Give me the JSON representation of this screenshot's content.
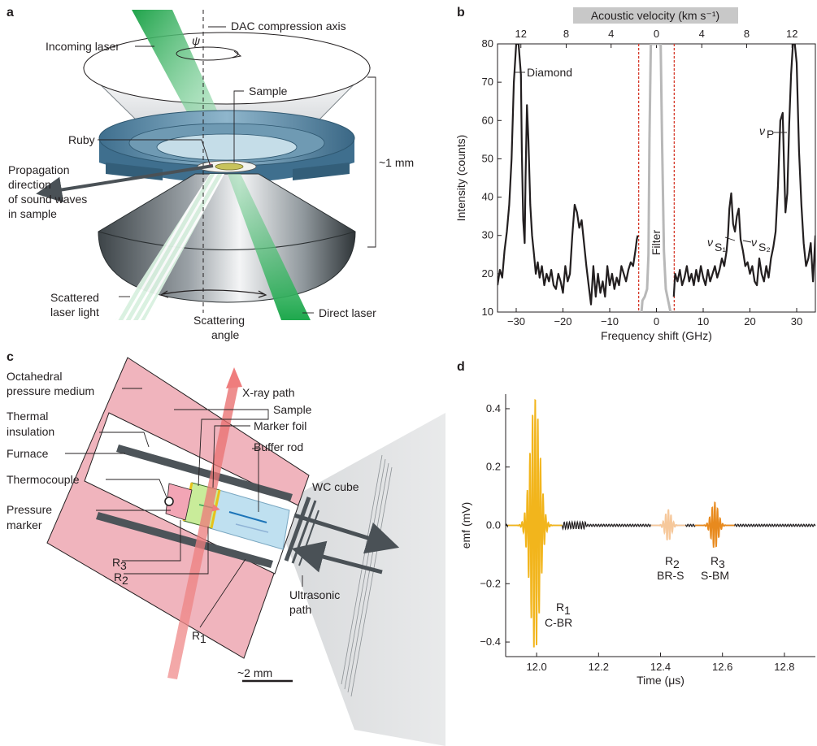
{
  "panels": {
    "a": {
      "letter": "a",
      "labels": {
        "axis": "DAC compression axis",
        "psi": "ψ",
        "incoming": "Incoming laser",
        "sample": "Sample",
        "ruby": "Ruby",
        "prop1": "Propagation",
        "prop2": "direction",
        "prop3": "of sound waves",
        "prop4": "in sample",
        "size": "~1 mm",
        "scattered1": "Scattered",
        "scattered2": "laser light",
        "scatangle1": "Scattering",
        "scatangle2": "angle",
        "direct": "Direct laser"
      }
    },
    "b": {
      "letter": "b",
      "top_axis_label": "Acoustic velocity (km s⁻¹)",
      "labels": {
        "diamond": "Diamond",
        "filter": "Filter",
        "vp": "ν",
        "vp_sub": "P",
        "vs1": "ν",
        "vs1_sub": "S₁",
        "vs2": "ν",
        "vs2_sub": "S₂"
      }
    },
    "c": {
      "letter": "c",
      "labels": {
        "octa1": "Octahedral",
        "octa2": "pressure medium",
        "xray": "X-ray path",
        "thermal1": "Thermal",
        "thermal2": "insulation",
        "sample": "Sample",
        "marker": "Marker foil",
        "buffer": "Buffer rod",
        "furnace": "Furnace",
        "thermocouple": "Thermocouple",
        "wc": "WC cube",
        "pressure1": "Pressure",
        "pressure2": "marker",
        "r3": "R",
        "r3sub": "3",
        "r2": "R",
        "r2sub": "2",
        "r1": "R",
        "r1sub": "1",
        "ultra1": "Ultrasonic",
        "ultra2": "path",
        "scale": "~2 mm"
      }
    },
    "d": {
      "letter": "d",
      "labels": {
        "r1": "R",
        "r1sub": "1",
        "r1name": "C-BR",
        "r2": "R",
        "r2sub": "2",
        "r2name": "BR-S",
        "r3": "R",
        "r3sub": "3",
        "r3name": "S-BM"
      }
    }
  },
  "chart_data": [
    {
      "id": "b",
      "type": "line",
      "xlabel": "Frequency shift (GHz)",
      "ylabel": "Intensity (counts)",
      "xlim": [
        -34,
        34
      ],
      "ylim": [
        10,
        80
      ],
      "xticks": [
        -30,
        -20,
        -10,
        0,
        10,
        20,
        30
      ],
      "yticks": [
        10,
        20,
        30,
        40,
        50,
        60,
        70,
        80
      ],
      "top_axis": {
        "label": "Acoustic velocity (km s⁻¹)",
        "ticks": [
          {
            "label": "12",
            "x": -29
          },
          {
            "label": "8",
            "x": -19.3
          },
          {
            "label": "4",
            "x": -9.7
          },
          {
            "label": "0",
            "x": 0
          },
          {
            "label": "4",
            "x": 9.7
          },
          {
            "label": "8",
            "x": 19.3
          },
          {
            "label": "12",
            "x": 29
          }
        ]
      },
      "series": [
        {
          "color": "#231f20",
          "x": [
            -34,
            -33.5,
            -33,
            -32.5,
            -32,
            -31.5,
            -31,
            -30.5,
            -30,
            -29.5,
            -29,
            -28.8,
            -28.5,
            -28.2,
            -28,
            -27.7,
            -27.4,
            -27,
            -26.6,
            -26.2,
            -25.8,
            -25.4,
            -25,
            -24.5,
            -24,
            -23.5,
            -23,
            -22.5,
            -22,
            -21.5,
            -21,
            -20.5,
            -20,
            -19.5,
            -19,
            -18.5,
            -18,
            -17.5,
            -17,
            -16.5,
            -16,
            -15.5,
            -15,
            -14.5,
            -14,
            -13.5,
            -13,
            -12.5,
            -12,
            -11.5,
            -11,
            -10.5,
            -10,
            -9.5,
            -9,
            -8.5,
            -8,
            -7.5,
            -7,
            -6.5,
            -6,
            -5.5,
            -5,
            -4.5,
            -4.2,
            -4
          ],
          "y": [
            17,
            21,
            19,
            26,
            31,
            38,
            50,
            70,
            80,
            80,
            72,
            52,
            34,
            28,
            45,
            64,
            55,
            38,
            30,
            25,
            20,
            23,
            19,
            22,
            17,
            20,
            18,
            21,
            17,
            16,
            20,
            18,
            15,
            22,
            18,
            20,
            30,
            38,
            36,
            32,
            34,
            28,
            22,
            17,
            12,
            22,
            14,
            20,
            15,
            18,
            14,
            22,
            17,
            20,
            16,
            19,
            17,
            22,
            20,
            18,
            21,
            23,
            22,
            26,
            29,
            30
          ]
        },
        {
          "color": "#231f20",
          "x": [
            3.7,
            4,
            4.5,
            5,
            5.5,
            6,
            6.5,
            7,
            7.5,
            8,
            8.5,
            9,
            9.5,
            10,
            10.5,
            11,
            11.5,
            12,
            12.5,
            13,
            13.5,
            14,
            14.5,
            15,
            15.3,
            15.6,
            16,
            16.4,
            16.8,
            17.2,
            17.6,
            18,
            18.5,
            19,
            19.5,
            20,
            20.5,
            21,
            21.5,
            22,
            22.5,
            23,
            23.5,
            24,
            24.5,
            25,
            25.5,
            26,
            26.5,
            27,
            27.3,
            27.6,
            28,
            28.4,
            28.8,
            29.2,
            29.6,
            30,
            30.5,
            31,
            31.5,
            32,
            32.5,
            33,
            33.5,
            34
          ],
          "y": [
            14,
            20,
            18,
            21,
            17,
            19,
            22,
            18,
            20,
            17,
            21,
            18,
            22,
            19,
            17,
            21,
            18,
            20,
            22,
            19,
            21,
            24,
            22,
            26,
            30,
            37,
            41,
            33,
            31,
            35,
            37,
            29,
            26,
            22,
            23,
            20,
            22,
            18,
            17,
            24,
            20,
            18,
            22,
            19,
            24,
            27,
            31,
            43,
            60,
            62,
            48,
            36,
            41,
            59,
            72,
            80,
            80,
            75,
            52,
            38,
            28,
            22,
            24,
            28,
            18,
            30
          ]
        },
        {
          "name": "Filter",
          "color": "#b8b8b8",
          "x": [
            -3.2,
            -3,
            -2.5,
            -2,
            -1.7,
            -1.5,
            -1.2,
            -0.9,
            0.7,
            0.9,
            1.2,
            1.6,
            2,
            2.5,
            3
          ],
          "y": [
            10,
            13,
            14,
            16,
            25,
            55,
            80,
            80,
            80,
            80,
            55,
            26,
            16,
            13,
            10
          ]
        }
      ],
      "vlines": [
        -3.8,
        3.8
      ],
      "vline_color": "#d63a2b"
    },
    {
      "id": "d",
      "type": "line",
      "xlabel": "Time (μs)",
      "ylabel": "emf (mV)",
      "xlim": [
        11.9,
        12.9
      ],
      "ylim": [
        -0.45,
        0.45
      ],
      "xticks": [
        12.0,
        12.2,
        12.4,
        12.6,
        12.8
      ],
      "yticks": [
        -0.4,
        -0.2,
        0.0,
        0.2,
        0.4
      ],
      "series": [
        {
          "name": "baseline",
          "color": "#231f20",
          "center": 12.0,
          "amp": 0.0,
          "note": ""
        },
        {
          "name": "R1",
          "color": "#f2b51c",
          "center": 11.995,
          "amp": 0.44,
          "width": 0.022,
          "period": 0.0085
        },
        {
          "name": "R2",
          "color": "#f6c89b",
          "center": 12.425,
          "amp": 0.055,
          "width": 0.014,
          "period": 0.0085
        },
        {
          "name": "R3",
          "color": "#e88a1e",
          "center": 12.575,
          "amp": 0.08,
          "width": 0.016,
          "period": 0.0085
        }
      ]
    }
  ]
}
